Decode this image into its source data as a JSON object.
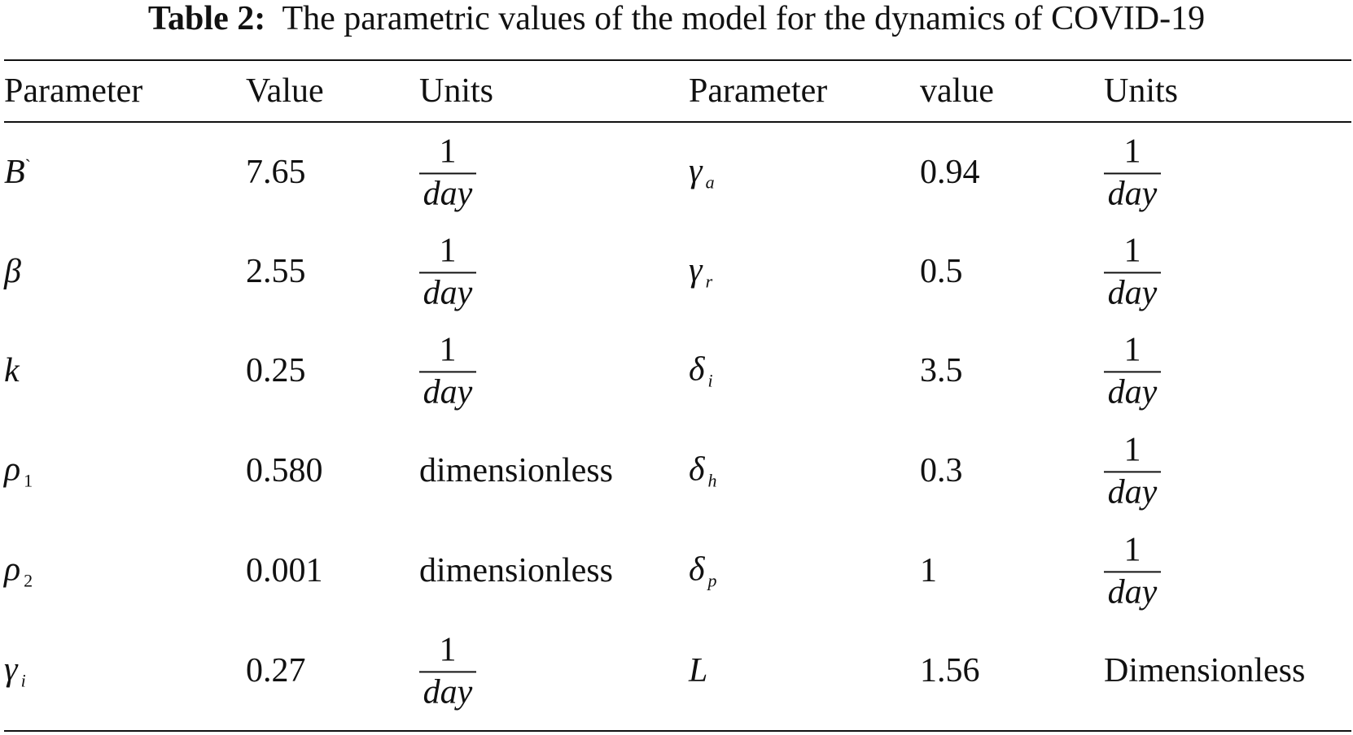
{
  "caption": {
    "label": "Table 2:",
    "text": "The parametric values of the model for the dynamics of COVID-19"
  },
  "table": {
    "header": [
      "Parameter",
      "Value",
      "Units",
      "Parameter",
      "value",
      "Units"
    ],
    "rows": [
      [
        {
          "symbol": "B",
          "sup": "`"
        },
        "7.65",
        {
          "numerator": "1",
          "denominator": "day"
        },
        {
          "symbol": "γ",
          "sub": "a"
        },
        "0.94",
        {
          "numerator": "1",
          "denominator": "day"
        }
      ],
      [
        {
          "symbol": "β"
        },
        "2.55",
        {
          "numerator": "1",
          "denominator": "day"
        },
        {
          "symbol": "γ",
          "sub": "r"
        },
        "0.5",
        {
          "numerator": "1",
          "denominator": "day"
        }
      ],
      [
        {
          "symbol": "k"
        },
        "0.25",
        {
          "numerator": "1",
          "denominator": "day"
        },
        {
          "symbol": "δ",
          "sub": "i"
        },
        "3.5",
        {
          "numerator": "1",
          "denominator": "day"
        }
      ],
      [
        {
          "symbol": "ρ",
          "sub": "1"
        },
        "0.580",
        "dimensionless",
        {
          "symbol": "δ",
          "sub": "h"
        },
        "0.3",
        {
          "numerator": "1",
          "denominator": "day"
        }
      ],
      [
        {
          "symbol": "ρ",
          "sub": "2"
        },
        "0.001",
        "dimensionless",
        {
          "symbol": "δ",
          "sub": "p"
        },
        "1",
        {
          "numerator": "1",
          "denominator": "day"
        }
      ],
      [
        {
          "symbol": "γ",
          "sub": "i"
        },
        "0.27",
        {
          "numerator": "1",
          "denominator": "day"
        },
        {
          "symbol": "L"
        },
        "1.56",
        "Dimensionless"
      ]
    ]
  }
}
